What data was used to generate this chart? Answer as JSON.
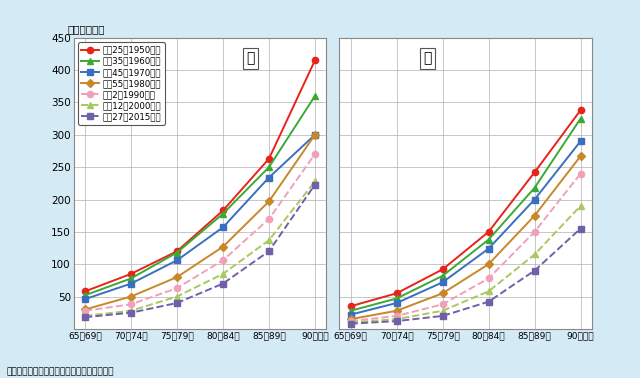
{
  "x_labels": [
    "65～69歳",
    "70～74歳",
    "75～79歳",
    "80～84歳",
    "85～89歳",
    "90歳以上"
  ],
  "x_positions": [
    0,
    1,
    2,
    3,
    4,
    5
  ],
  "ylim": [
    0,
    450
  ],
  "yticks": [
    0,
    50,
    100,
    150,
    200,
    250,
    300,
    350,
    400,
    450
  ],
  "ylabel": "（人口千対）",
  "series": [
    {
      "label": "昭和25（1950）年",
      "color": "#e8241a",
      "linestyle": "solid",
      "marker": "o",
      "male": [
        58,
        85,
        120,
        183,
        263,
        415
      ],
      "female": [
        35,
        55,
        92,
        150,
        242,
        338
      ]
    },
    {
      "label": "昭和35（1960）年",
      "color": "#3aaa35",
      "linestyle": "solid",
      "marker": "^",
      "male": [
        52,
        78,
        118,
        178,
        250,
        360
      ],
      "female": [
        28,
        47,
        82,
        138,
        218,
        325
      ]
    },
    {
      "label": "昭和45（1970）年",
      "color": "#3a6fbf",
      "linestyle": "solid",
      "marker": "s",
      "male": [
        46,
        70,
        106,
        157,
        234,
        300
      ],
      "female": [
        22,
        40,
        72,
        124,
        200,
        290
      ]
    },
    {
      "label": "昭和55（1980）年",
      "color": "#c8882a",
      "linestyle": "solid",
      "marker": "D",
      "male": [
        30,
        50,
        80,
        127,
        197,
        300
      ],
      "female": [
        15,
        28,
        55,
        100,
        175,
        267
      ]
    },
    {
      "label": "平成2（1990）年",
      "color": "#f0a0b8",
      "linestyle": "dashed",
      "marker": "o",
      "male": [
        28,
        38,
        63,
        106,
        170,
        270
      ],
      "female": [
        12,
        20,
        38,
        78,
        150,
        240
      ]
    },
    {
      "label": "平成12（2000）年",
      "color": "#a8c860",
      "linestyle": "dashed",
      "marker": "^",
      "male": [
        20,
        28,
        50,
        85,
        137,
        228
      ],
      "female": [
        10,
        15,
        28,
        58,
        115,
        190
      ]
    },
    {
      "label": "平成27（2015）年",
      "color": "#7060a8",
      "linestyle": "dashed",
      "marker": "s",
      "male": [
        18,
        25,
        40,
        70,
        120,
        223
      ],
      "female": [
        8,
        12,
        20,
        42,
        90,
        155
      ]
    }
  ],
  "background_color": "#d4eaf5",
  "plot_background": "#ffffff",
  "label_male": "男",
  "label_female": "女",
  "source_text": "資料：厕生労働省「人口動態統計」より作成"
}
